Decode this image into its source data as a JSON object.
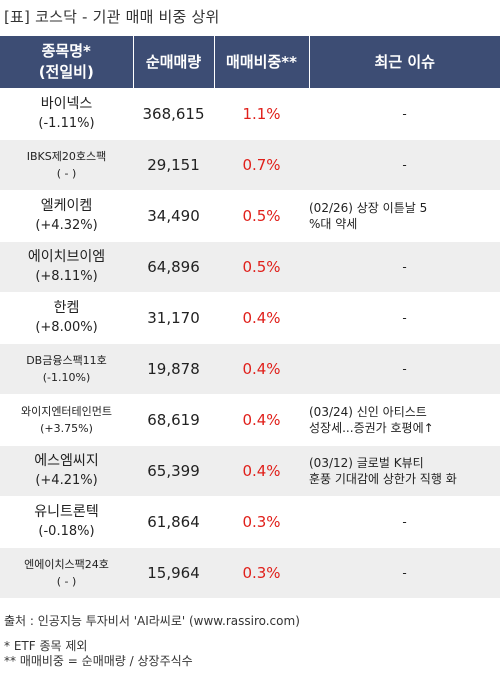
{
  "title": "[표] 코스닥 - 기관 매매 비중 상위",
  "columns": {
    "name_line1": "종목명*",
    "name_line2": "(전일비)",
    "net_volume": "순매매량",
    "ratio": "매매비중**",
    "issue": "최근 이슈"
  },
  "rows": [
    {
      "name": "바이넥스",
      "change": "(-1.11%)",
      "net_volume": "368,615",
      "ratio": "1.1%",
      "issue_line1": "-",
      "issue_line2": ""
    },
    {
      "name": "IBKS제20호스팩",
      "change": "( - )",
      "net_volume": "29,151",
      "ratio": "0.7%",
      "issue_line1": "-",
      "issue_line2": ""
    },
    {
      "name": "엘케이켐",
      "change": "(+4.32%)",
      "net_volume": "34,490",
      "ratio": "0.5%",
      "issue_line1": "(02/26) 상장 이튿날 5",
      "issue_line2": "%대 약세"
    },
    {
      "name": "에이치브이엠",
      "change": "(+8.11%)",
      "net_volume": "64,896",
      "ratio": "0.5%",
      "issue_line1": "-",
      "issue_line2": ""
    },
    {
      "name": "한켐",
      "change": "(+8.00%)",
      "net_volume": "31,170",
      "ratio": "0.4%",
      "issue_line1": "-",
      "issue_line2": ""
    },
    {
      "name": "DB금융스팩11호",
      "change": "(-1.10%)",
      "net_volume": "19,878",
      "ratio": "0.4%",
      "issue_line1": "-",
      "issue_line2": ""
    },
    {
      "name": "와이지엔터테인먼트",
      "change": "(+3.75%)",
      "net_volume": "68,619",
      "ratio": "0.4%",
      "issue_line1": "(03/24) 신인 아티스트",
      "issue_line2": "성장세...증권가 호평에↑"
    },
    {
      "name": "에스엠씨지",
      "change": "(+4.21%)",
      "net_volume": "65,399",
      "ratio": "0.4%",
      "issue_line1": "(03/12) 글로벌 K뷰티",
      "issue_line2": "훈풍 기대감에 상한가 직행 화"
    },
    {
      "name": "유니트론텍",
      "change": "(-0.18%)",
      "net_volume": "61,864",
      "ratio": "0.3%",
      "issue_line1": "-",
      "issue_line2": ""
    },
    {
      "name": "엔에이치스팩24호",
      "change": "( - )",
      "net_volume": "15,964",
      "ratio": "0.3%",
      "issue_line1": "-",
      "issue_line2": ""
    }
  ],
  "footer": {
    "source": "출처 : 인공지능 투자비서 'AI라씨로' (www.rassiro.com)",
    "note1": "* ETF 종목 제외",
    "note2": "** 매매비중 = 순매매량 / 상장주식수"
  }
}
